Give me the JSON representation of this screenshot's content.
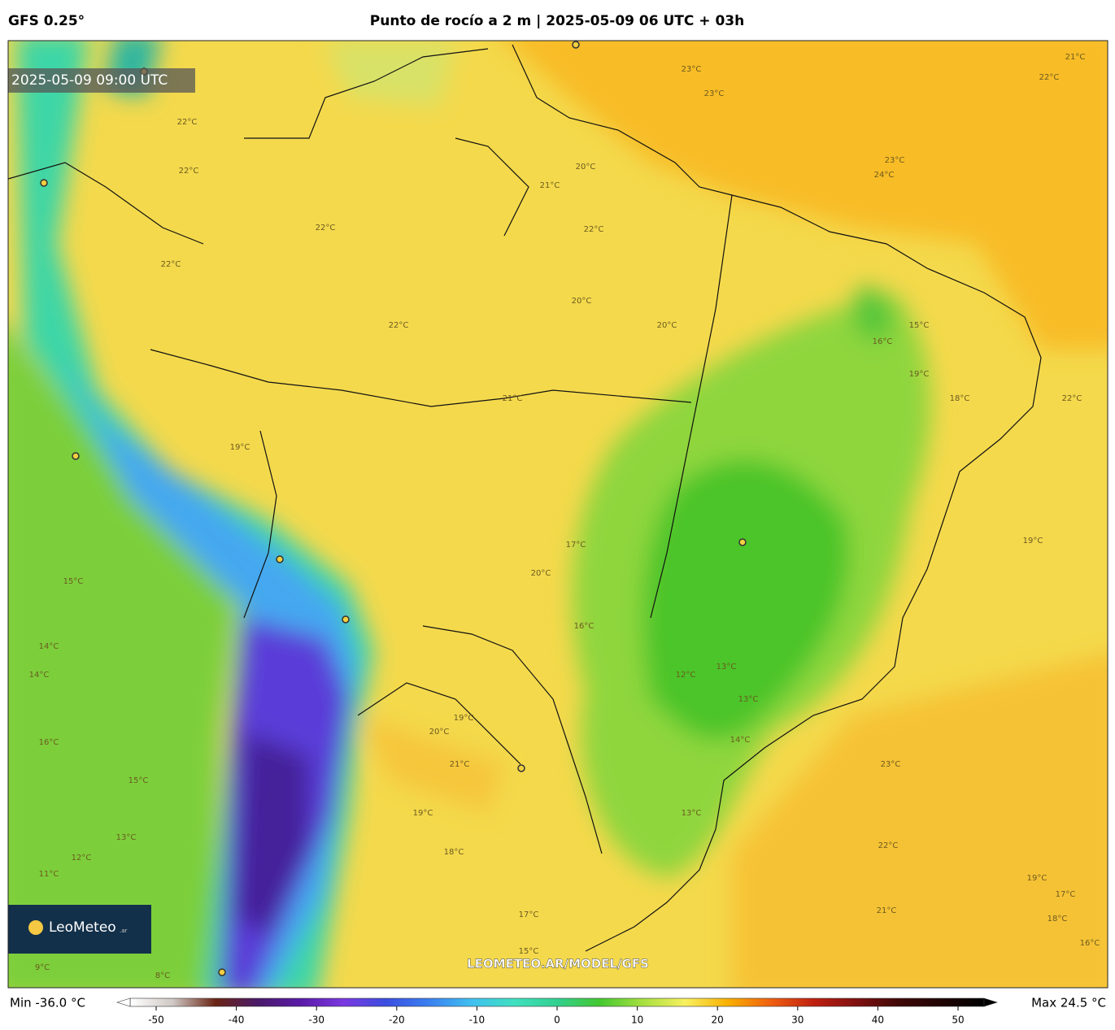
{
  "header": {
    "model": "GFS 0.25°",
    "title": "Punto de rocío a 2 m | 2025-05-09 06 UTC + 03h"
  },
  "map": {
    "timestamp": "2025-05-09 09:00 UTC",
    "watermark": "LEOMETEO.AR/MODEL/GFS",
    "logo": "LeoMeteo",
    "logo_suffix": ".ar",
    "contour_labels": [
      "22°C",
      "22°C",
      "22°C",
      "22°C",
      "23°C",
      "23°C",
      "23°C",
      "24°C",
      "20°C",
      "21°C",
      "22°C",
      "20°C",
      "20°C",
      "22°C",
      "15°C",
      "16°C",
      "19°C",
      "18°C",
      "22°C",
      "21°C",
      "19°C",
      "17°C",
      "20°C",
      "16°C",
      "13°C",
      "12°C",
      "13°C",
      "14°C",
      "13°C",
      "23°C",
      "22°C",
      "21°C",
      "19°C",
      "17°C",
      "18°C",
      "16°C",
      "15°C",
      "14°C",
      "14°C",
      "16°C",
      "15°C",
      "13°C",
      "12°C",
      "11°C",
      "19°C",
      "20°C",
      "21°C",
      "18°C",
      "19°C",
      "17°C",
      "15°C",
      "8°C",
      "9°C",
      "21°C",
      "22°C",
      "19°C"
    ]
  },
  "colorbar": {
    "min_label": "Min -36.0 °C",
    "max_label": "Max 24.5 °C",
    "lim": [
      -50,
      50
    ],
    "ticks": [
      -50,
      -40,
      -30,
      -20,
      -10,
      0,
      10,
      20,
      30,
      40,
      50
    ],
    "colors": [
      "#ffffff",
      "#cfc8c4",
      "#6a2414",
      "#4a1a6a",
      "#5a1aa8",
      "#7a38e0",
      "#3a4ee0",
      "#3a80f0",
      "#40c0f0",
      "#40e0c0",
      "#32d090",
      "#44c830",
      "#a6e040",
      "#f8f060",
      "#f8b000",
      "#f06010",
      "#c02010",
      "#801010",
      "#400808",
      "#200404",
      "#000000"
    ]
  }
}
